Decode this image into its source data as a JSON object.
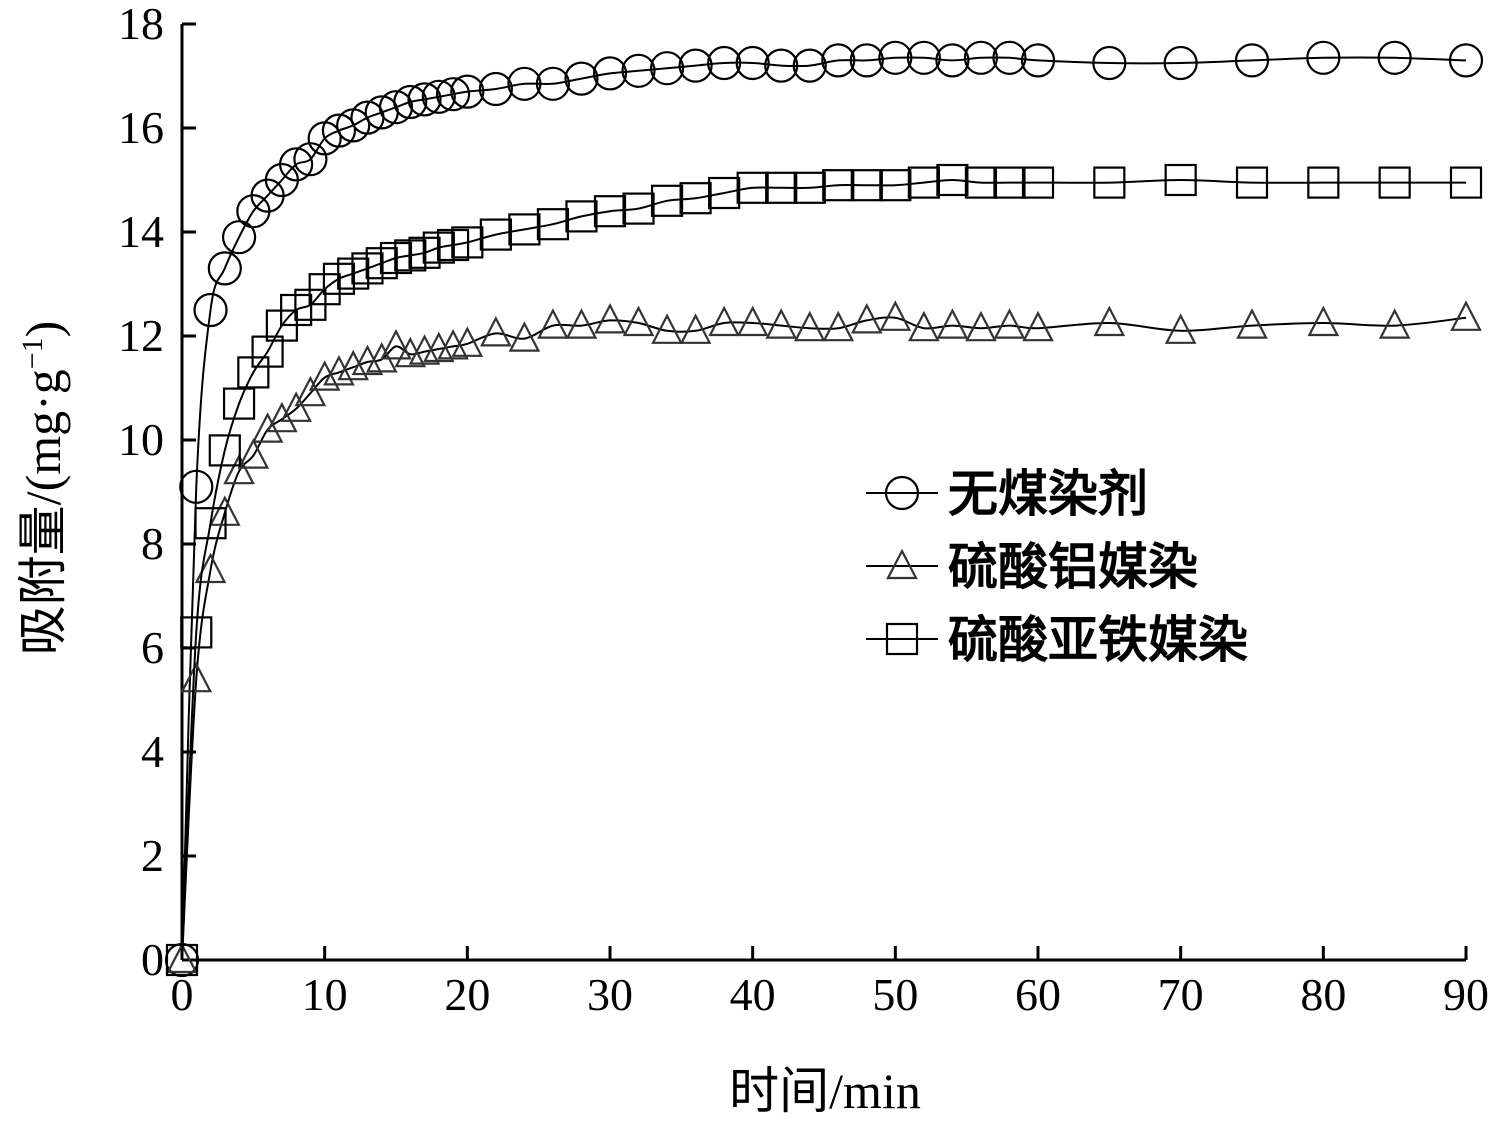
{
  "chart_data": {
    "type": "line",
    "xlabel": "时间/min",
    "ylabel": "吸附量/(mg·g⁻¹)",
    "ylabel_parts": {
      "main": "吸附量/(mg·g",
      "sup": "−1",
      "close": ")"
    },
    "xlim": [
      0,
      90
    ],
    "ylim": [
      0,
      18
    ],
    "xticks": [
      0,
      10,
      20,
      30,
      40,
      50,
      60,
      70,
      80,
      90
    ],
    "yticks": [
      0,
      2,
      4,
      6,
      8,
      10,
      12,
      14,
      16,
      18
    ],
    "grid": false,
    "legend_position": "center-right",
    "series": [
      {
        "name": "无煤染剂",
        "marker": "circle",
        "x": [
          0,
          1,
          2,
          3,
          4,
          5,
          6,
          7,
          8,
          9,
          10,
          11,
          12,
          13,
          14,
          15,
          16,
          17,
          18,
          19,
          20,
          22,
          24,
          26,
          28,
          30,
          32,
          34,
          36,
          38,
          40,
          42,
          44,
          46,
          48,
          50,
          52,
          54,
          56,
          58,
          60,
          65,
          70,
          75,
          80,
          85,
          90
        ],
        "values": [
          0,
          9.1,
          12.5,
          13.3,
          13.9,
          14.4,
          14.7,
          15.0,
          15.3,
          15.4,
          15.8,
          15.95,
          16.05,
          16.2,
          16.3,
          16.4,
          16.5,
          16.55,
          16.6,
          16.65,
          16.7,
          16.75,
          16.85,
          16.85,
          16.95,
          17.05,
          17.1,
          17.15,
          17.2,
          17.25,
          17.25,
          17.2,
          17.2,
          17.3,
          17.3,
          17.35,
          17.35,
          17.3,
          17.35,
          17.35,
          17.3,
          17.25,
          17.25,
          17.3,
          17.35,
          17.35,
          17.3
        ]
      },
      {
        "name": "硫酸铝媒染",
        "marker": "triangle",
        "x": [
          0,
          1,
          2,
          3,
          4,
          5,
          6,
          7,
          8,
          9,
          10,
          11,
          12,
          13,
          14,
          15,
          16,
          17,
          18,
          19,
          20,
          22,
          24,
          26,
          28,
          30,
          32,
          34,
          36,
          38,
          40,
          42,
          44,
          46,
          48,
          50,
          52,
          54,
          56,
          58,
          60,
          65,
          70,
          75,
          80,
          85,
          90
        ],
        "values": [
          0,
          5.4,
          7.5,
          8.6,
          9.4,
          9.7,
          10.2,
          10.4,
          10.6,
          10.9,
          11.2,
          11.3,
          11.4,
          11.5,
          11.55,
          11.8,
          11.65,
          11.7,
          11.75,
          11.8,
          11.85,
          12.05,
          11.95,
          12.2,
          12.2,
          12.3,
          12.25,
          12.1,
          12.1,
          12.25,
          12.25,
          12.2,
          12.15,
          12.15,
          12.3,
          12.35,
          12.15,
          12.2,
          12.15,
          12.2,
          12.15,
          12.25,
          12.1,
          12.2,
          12.25,
          12.2,
          12.35
        ]
      },
      {
        "name": "硫酸亚铁媒染",
        "marker": "square",
        "x": [
          0,
          1,
          2,
          3,
          4,
          5,
          6,
          7,
          8,
          9,
          10,
          11,
          12,
          13,
          14,
          15,
          16,
          17,
          18,
          19,
          20,
          22,
          24,
          26,
          28,
          30,
          32,
          34,
          36,
          38,
          40,
          42,
          44,
          46,
          48,
          50,
          52,
          54,
          56,
          58,
          60,
          65,
          70,
          75,
          80,
          85,
          90
        ],
        "values": [
          0,
          6.3,
          8.4,
          9.8,
          10.7,
          11.3,
          11.7,
          12.2,
          12.5,
          12.6,
          12.9,
          13.1,
          13.2,
          13.3,
          13.4,
          13.5,
          13.55,
          13.6,
          13.7,
          13.75,
          13.8,
          13.95,
          14.05,
          14.15,
          14.3,
          14.4,
          14.45,
          14.6,
          14.65,
          14.75,
          14.85,
          14.85,
          14.85,
          14.9,
          14.9,
          14.9,
          14.95,
          15.0,
          14.95,
          14.95,
          14.95,
          14.95,
          15.0,
          14.95,
          14.95,
          14.95,
          14.95
        ]
      }
    ]
  }
}
